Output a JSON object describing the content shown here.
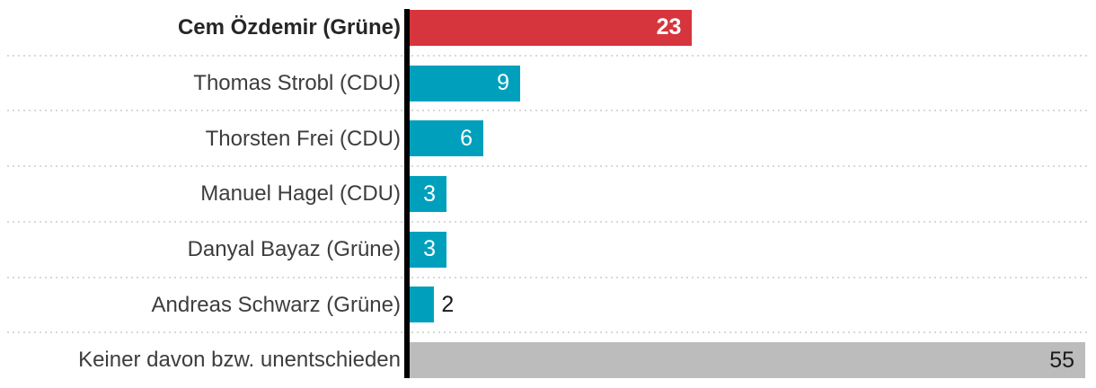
{
  "chart_data": {
    "type": "bar",
    "orientation": "horizontal",
    "title": "",
    "xlabel": "",
    "ylabel": "",
    "xlim": [
      0,
      55
    ],
    "grid": false,
    "legend": false,
    "axis_max": 55,
    "categories": [
      "Cem Özdemir (Grüne)",
      "Thomas Strobl (CDU)",
      "Thorsten Frei (CDU)",
      "Manuel Hagel (CDU)",
      "Danyal Bayaz (Grüne)",
      "Andreas Schwarz (Grüne)",
      "Keiner davon bzw. unentschieden"
    ],
    "values": [
      23,
      9,
      6,
      3,
      3,
      2,
      55
    ],
    "rows": [
      {
        "label": "Cem Özdemir (Grüne)",
        "value": 23,
        "display_value": "23",
        "color": "#d6353e",
        "bold": true,
        "value_position": "inside",
        "value_color": "#ffffff"
      },
      {
        "label": "Thomas Strobl (CDU)",
        "value": 9,
        "display_value": "9",
        "color": "#00a0bd",
        "bold": false,
        "value_position": "inside",
        "value_color": "#ffffff"
      },
      {
        "label": "Thorsten Frei (CDU)",
        "value": 6,
        "display_value": "6",
        "color": "#00a0bd",
        "bold": false,
        "value_position": "inside",
        "value_color": "#ffffff"
      },
      {
        "label": "Manuel Hagel (CDU)",
        "value": 3,
        "display_value": "3",
        "color": "#00a0bd",
        "bold": false,
        "value_position": "inside",
        "value_color": "#ffffff"
      },
      {
        "label": "Danyal Bayaz (Grüne)",
        "value": 3,
        "display_value": "3",
        "color": "#00a0bd",
        "bold": false,
        "value_position": "inside",
        "value_color": "#ffffff"
      },
      {
        "label": "Andreas Schwarz (Grüne)",
        "value": 2,
        "display_value": "2",
        "color": "#00a0bd",
        "bold": false,
        "value_position": "outside",
        "value_color": "#1a1a1a"
      },
      {
        "label": "Keiner davon bzw. unentschieden",
        "value": 55,
        "display_value": "55",
        "color": "#bcbcbc",
        "bold": false,
        "value_position": "inside",
        "value_color": "#1a1a1a"
      }
    ]
  },
  "colors": {
    "highlight_bar": "#d6353e",
    "default_bar": "#00a0bd",
    "neutral_bar": "#bcbcbc",
    "axis_line": "#000000",
    "separator_dots": "#d8d8d8",
    "label_text": "#3d3d3d",
    "label_text_bold": "#262626",
    "value_text_light": "#ffffff",
    "value_text_dark": "#1a1a1a"
  }
}
